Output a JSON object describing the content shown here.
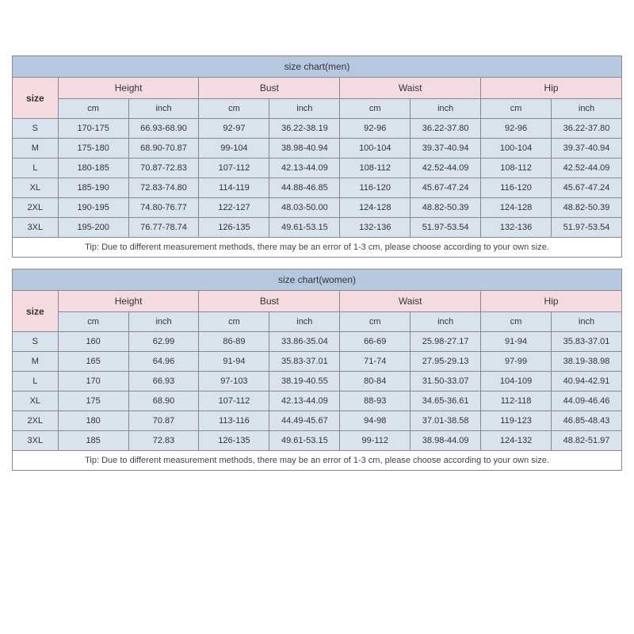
{
  "tables": [
    {
      "title": "size chart(men)",
      "size_header": "size",
      "unit_cm": "cm",
      "unit_inch": "inch",
      "measurements": [
        "Height",
        "Bust",
        "Waist",
        "Hip"
      ],
      "sizes": [
        "S",
        "M",
        "L",
        "XL",
        "2XL",
        "3XL"
      ],
      "rows": [
        [
          "170-175",
          "66.93-68.90",
          "92-97",
          "36.22-38.19",
          "92-96",
          "36.22-37.80",
          "92-96",
          "36.22-37.80"
        ],
        [
          "175-180",
          "68.90-70.87",
          "99-104",
          "38.98-40.94",
          "100-104",
          "39.37-40.94",
          "100-104",
          "39.37-40.94"
        ],
        [
          "180-185",
          "70.87-72.83",
          "107-112",
          "42.13-44.09",
          "108-112",
          "42.52-44.09",
          "108-112",
          "42.52-44.09"
        ],
        [
          "185-190",
          "72.83-74.80",
          "114-119",
          "44.88-46.85",
          "116-120",
          "45.67-47.24",
          "116-120",
          "45.67-47.24"
        ],
        [
          "190-195",
          "74.80-76.77",
          "122-127",
          "48.03-50.00",
          "124-128",
          "48.82-50.39",
          "124-128",
          "48.82-50.39"
        ],
        [
          "195-200",
          "76.77-78.74",
          "126-135",
          "49.61-53.15",
          "132-136",
          "51.97-53.54",
          "132-136",
          "51.97-53.54"
        ]
      ],
      "tip": "Tip: Due to different measurement methods, there may be an error of 1-3 cm, please choose according to your own size."
    },
    {
      "title": "size chart(women)",
      "size_header": "size",
      "unit_cm": "cm",
      "unit_inch": "inch",
      "measurements": [
        "Height",
        "Bust",
        "Waist",
        "Hip"
      ],
      "sizes": [
        "S",
        "M",
        "L",
        "XL",
        "2XL",
        "3XL"
      ],
      "rows": [
        [
          "160",
          "62.99",
          "86-89",
          "33.86-35.04",
          "66-69",
          "25.98-27.17",
          "91-94",
          "35.83-37.01"
        ],
        [
          "165",
          "64.96",
          "91-94",
          "35.83-37.01",
          "71-74",
          "27.95-29.13",
          "97-99",
          "38.19-38.98"
        ],
        [
          "170",
          "66.93",
          "97-103",
          "38.19-40.55",
          "80-84",
          "31.50-33.07",
          "104-109",
          "40.94-42.91"
        ],
        [
          "175",
          "68.90",
          "107-112",
          "42.13-44.09",
          "88-93",
          "34.65-36.61",
          "112-118",
          "44.09-46.46"
        ],
        [
          "180",
          "70.87",
          "113-116",
          "44.49-45.67",
          "94-98",
          "37.01-38.58",
          "119-123",
          "46.85-48.43"
        ],
        [
          "185",
          "72.83",
          "126-135",
          "49.61-53.15",
          "99-112",
          "38.98-44.09",
          "124-132",
          "48.82-51.97"
        ]
      ],
      "tip": "Tip: Due to different measurement methods, there may be an error of 1-3 cm, please choose according to your own size."
    }
  ],
  "style": {
    "title_bg": "#b6c8df",
    "measurement_bg": "#f4dbdf",
    "data_bg": "#d9e3ee",
    "border_color": "#888888",
    "text_color": "#333333",
    "fontsize_title": 12,
    "fontsize_body": 11
  }
}
